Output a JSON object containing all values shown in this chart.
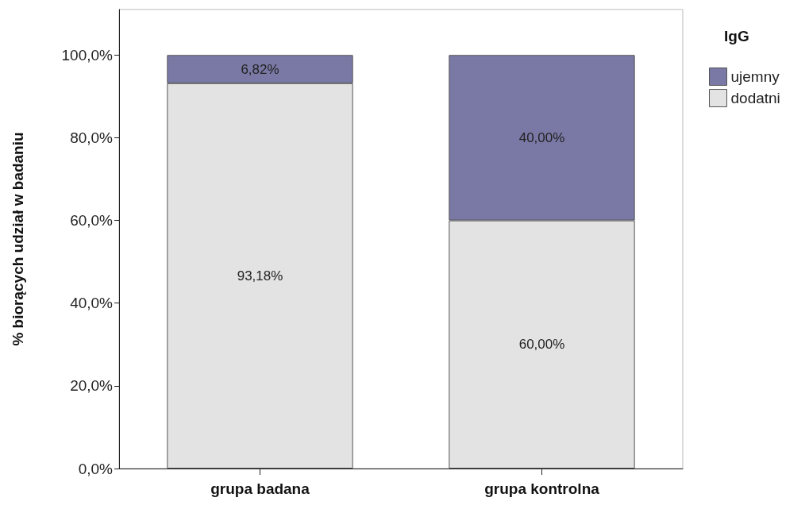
{
  "chart_data": {
    "type": "bar",
    "stacked": true,
    "ylabel": "% biorących udział w badaniu",
    "legend_title": "IgG",
    "legend": "top right",
    "categories": [
      "grupa badana",
      "grupa kontrolna"
    ],
    "series": [
      {
        "name": "dodatni",
        "color": "#e3e3e3",
        "values": [
          93.18,
          60.0
        ],
        "value_labels": [
          "93,18%",
          "60,00%"
        ]
      },
      {
        "name": "ujemny",
        "color": "#7a79a6",
        "values": [
          6.82,
          40.0
        ],
        "value_labels": [
          "6,82%",
          "40,00%"
        ]
      }
    ],
    "ylim": [
      0,
      111
    ],
    "yticks": [
      {
        "value": 0,
        "label": "0,0%"
      },
      {
        "value": 20,
        "label": "20,0%"
      },
      {
        "value": 40,
        "label": "40,0%"
      },
      {
        "value": 60,
        "label": "60,0%"
      },
      {
        "value": 80,
        "label": "80,0%"
      },
      {
        "value": 100,
        "label": "100,0%"
      }
    ],
    "grid": false
  }
}
